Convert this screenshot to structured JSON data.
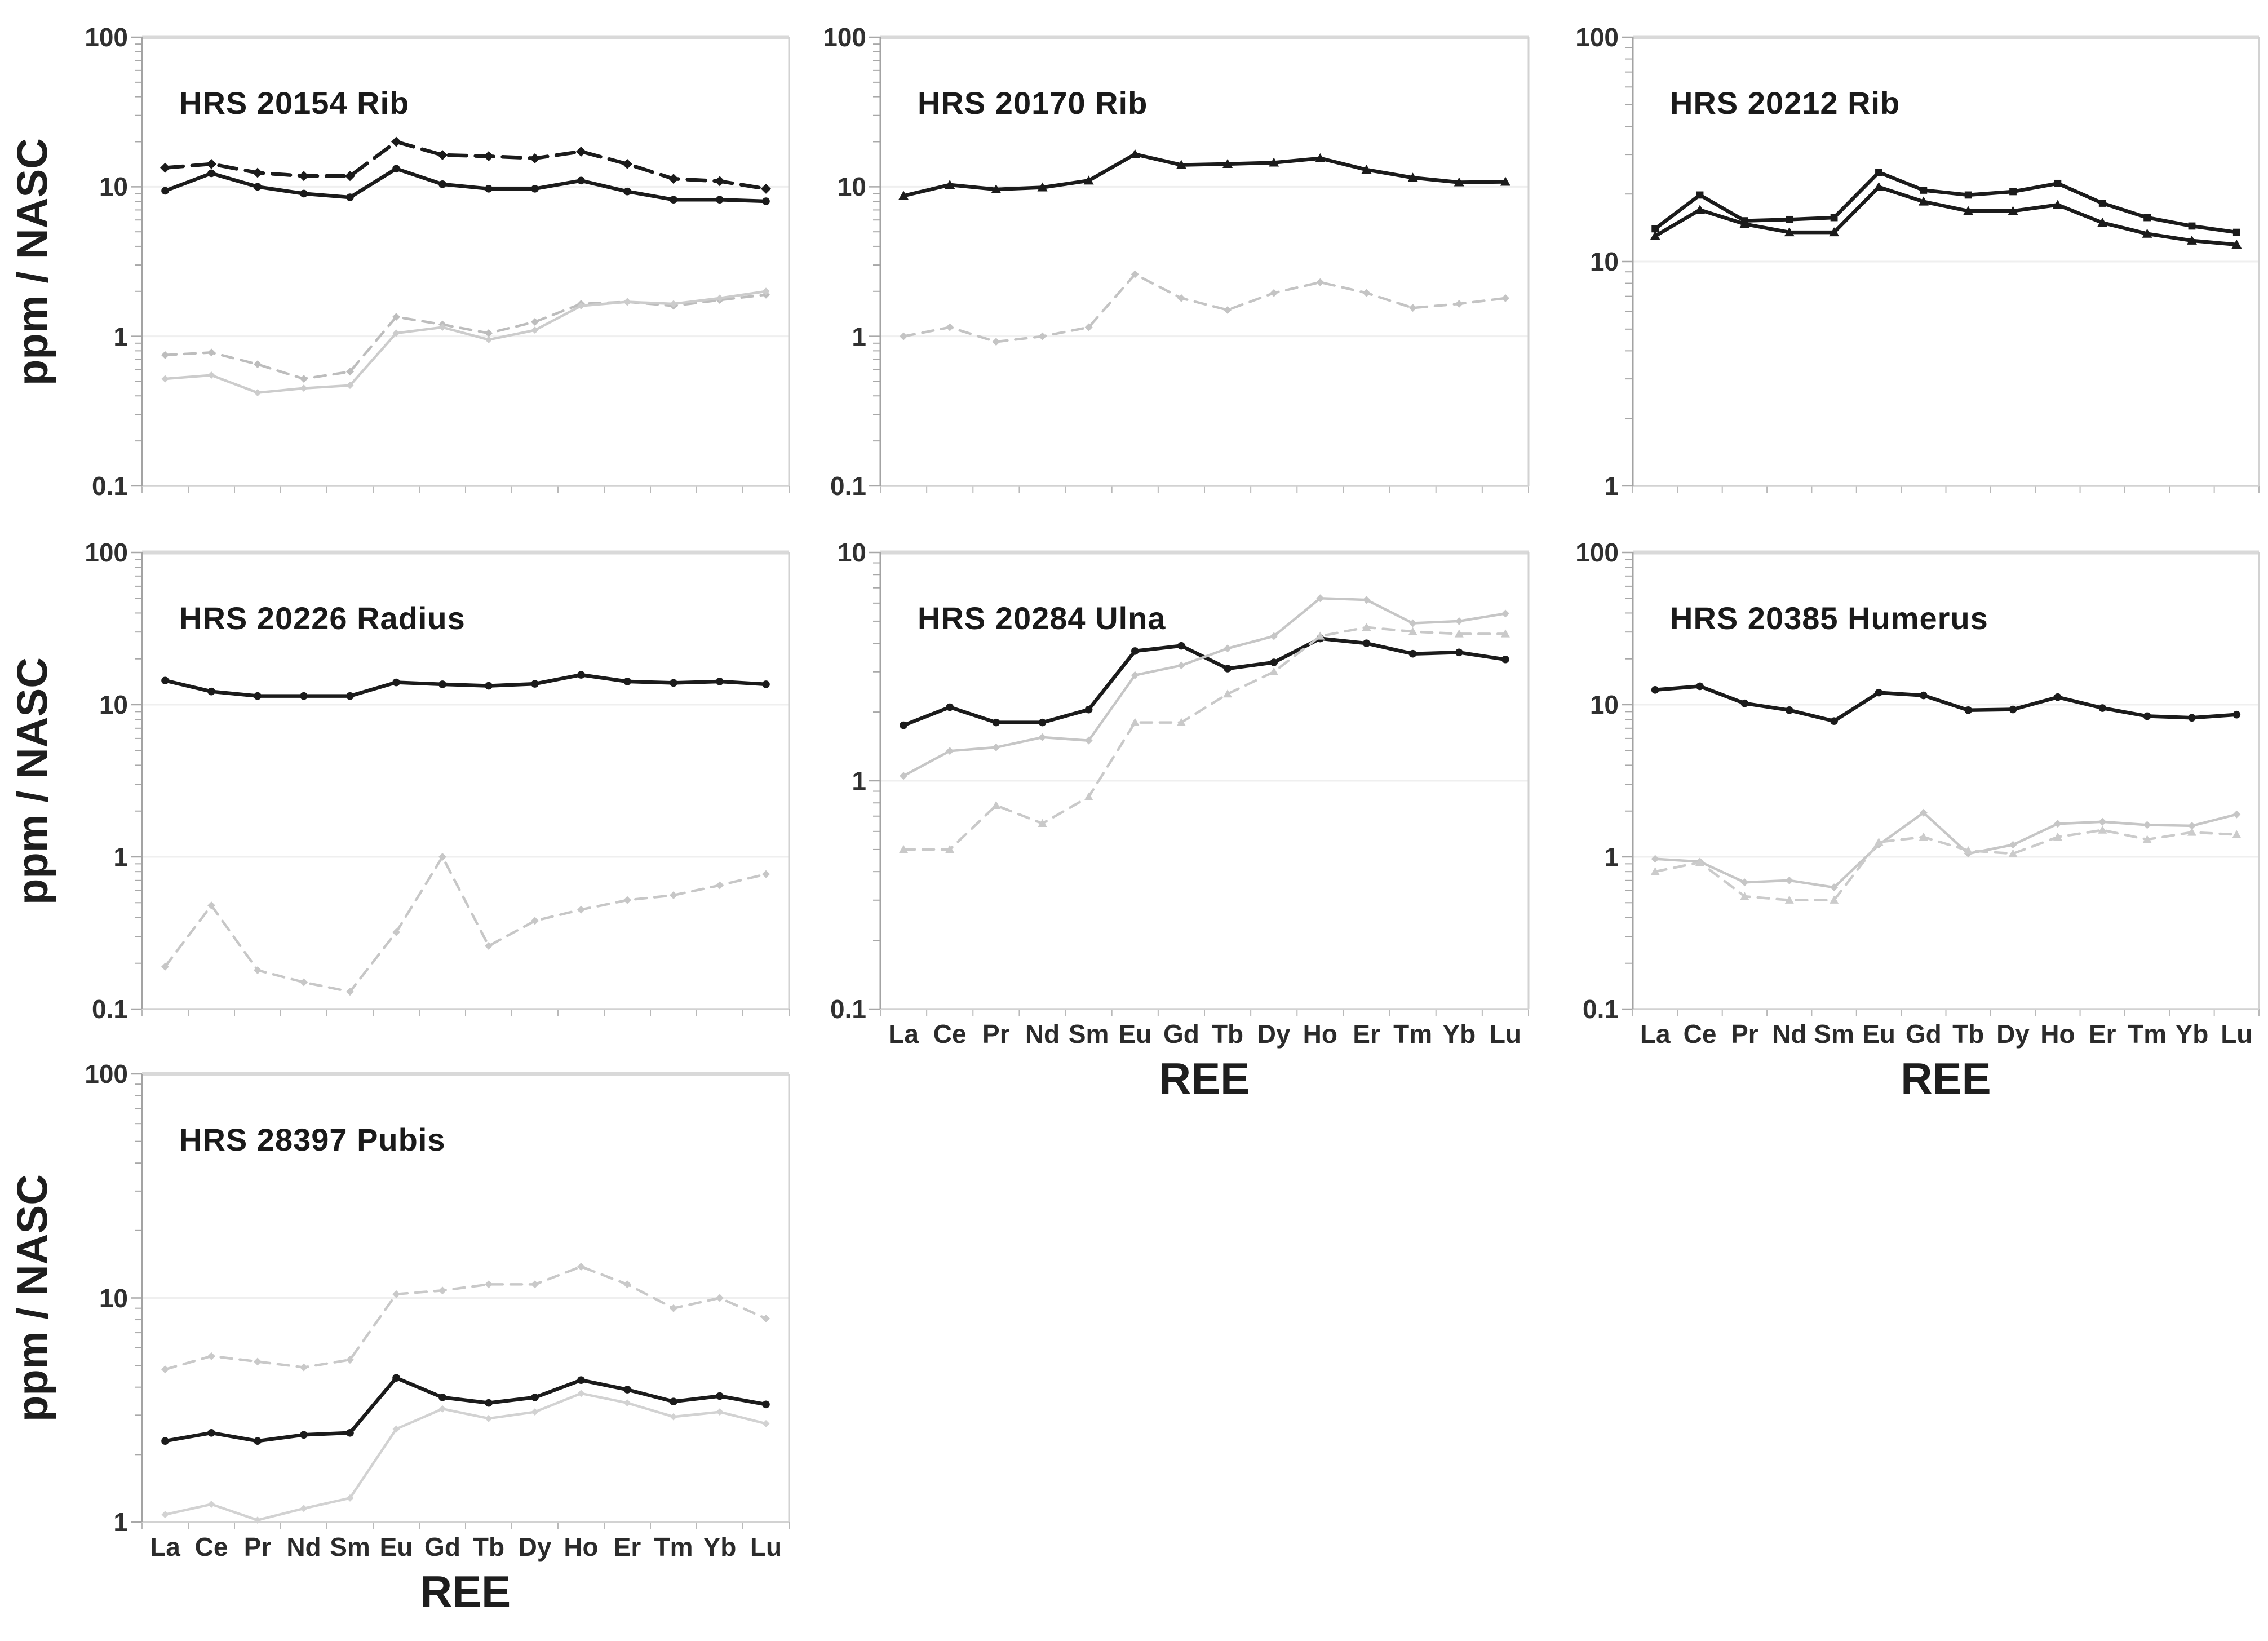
{
  "figure": {
    "y_axis_title": "ppm / NASC",
    "x_axis_title": "REE",
    "background_color": "#ffffff",
    "elements": [
      "La",
      "Ce",
      "Pr",
      "Nd",
      "Sm",
      "Eu",
      "Gd",
      "Tb",
      "Dy",
      "Ho",
      "Er",
      "Tm",
      "Yb",
      "Lu"
    ],
    "colors": {
      "black_series": "#1b1b1b",
      "gray_dashed_series": "#bfbfbf",
      "gray_solid_series": "#cbcbcb",
      "gridline": "#efefef",
      "axis_line": "#a3a3a3",
      "frame_line": "#d2d2d2",
      "tick_mark": "#a8a8a8"
    }
  },
  "chart_data": [
    {
      "type": "line",
      "title": "HRS 20154 Rib",
      "grid": {
        "row": 0,
        "col": 0
      },
      "ylog": true,
      "ylim": [
        0.1,
        100
      ],
      "ytick_labels": [
        "100",
        "10",
        "1",
        "0.1"
      ],
      "show_x_tick_labels": false,
      "show_x_axis_title": false,
      "show_y_axis_title": true,
      "series": [
        {
          "id": "black-dashed",
          "color": "#1b1b1b",
          "dash": "32 16",
          "width": 6.5,
          "marker": "diamond",
          "marker_size": 9,
          "values": [
            13.4,
            14.2,
            12.4,
            11.8,
            11.8,
            20.0,
            16.3,
            16.0,
            15.5,
            17.2,
            14.2,
            11.3,
            10.9,
            9.7
          ]
        },
        {
          "id": "black-solid",
          "color": "#1b1b1b",
          "dash": "",
          "width": 6.5,
          "marker": "circle",
          "marker_size": 8,
          "values": [
            9.4,
            12.3,
            10.0,
            9.0,
            8.5,
            13.2,
            10.4,
            9.7,
            9.7,
            11.0,
            9.3,
            8.2,
            8.2,
            8.0
          ]
        },
        {
          "id": "gray-dashed",
          "color": "#bdbdbd",
          "dash": "20 14",
          "width": 4.5,
          "marker": "diamond",
          "marker_size": 7,
          "values": [
            0.75,
            0.78,
            0.65,
            0.52,
            0.58,
            1.35,
            1.2,
            1.05,
            1.25,
            1.65,
            1.7,
            1.6,
            1.75,
            1.9
          ]
        },
        {
          "id": "gray-solid",
          "color": "#cccccc",
          "dash": "",
          "width": 4.5,
          "marker": "diamond",
          "marker_size": 6.5,
          "values": [
            0.52,
            0.55,
            0.42,
            0.45,
            0.47,
            1.05,
            1.15,
            0.95,
            1.1,
            1.6,
            1.7,
            1.65,
            1.8,
            2.0
          ]
        }
      ]
    },
    {
      "type": "line",
      "title": "HRS 20170 Rib",
      "grid": {
        "row": 0,
        "col": 1
      },
      "ylog": true,
      "ylim": [
        0.1,
        100
      ],
      "ytick_labels": [
        "100",
        "10",
        "1",
        "0.1"
      ],
      "show_x_tick_labels": false,
      "show_x_axis_title": false,
      "show_y_axis_title": false,
      "series": [
        {
          "id": "black-solid",
          "color": "#1b1b1b",
          "dash": "",
          "width": 6.5,
          "marker": "triangle",
          "marker_size": 9,
          "values": [
            8.7,
            10.3,
            9.6,
            9.9,
            11.0,
            16.5,
            14.0,
            14.2,
            14.5,
            15.5,
            13.0,
            11.5,
            10.7,
            10.8
          ]
        },
        {
          "id": "gray-dashed",
          "color": "#c4c4c4",
          "dash": "20 14",
          "width": 4.5,
          "marker": "diamond",
          "marker_size": 7,
          "values": [
            1.0,
            1.15,
            0.92,
            1.0,
            1.15,
            2.6,
            1.8,
            1.5,
            1.95,
            2.3,
            1.95,
            1.55,
            1.65,
            1.8
          ]
        }
      ]
    },
    {
      "type": "line",
      "title": "HRS 20212 Rib",
      "grid": {
        "row": 0,
        "col": 2
      },
      "ylog": true,
      "ylim": [
        1,
        100
      ],
      "ytick_labels": [
        "100",
        "10",
        "1"
      ],
      "show_x_tick_labels": false,
      "show_x_axis_title": false,
      "show_y_axis_title": false,
      "series": [
        {
          "id": "black-upper",
          "color": "#1b1b1b",
          "dash": "",
          "width": 6.5,
          "marker": "square",
          "marker_size": 8,
          "values": [
            14.0,
            19.8,
            15.2,
            15.4,
            15.7,
            25.0,
            20.8,
            19.8,
            20.5,
            22.3,
            18.2,
            15.7,
            14.4,
            13.5
          ]
        },
        {
          "id": "black-lower",
          "color": "#1b1b1b",
          "dash": "",
          "width": 6.5,
          "marker": "triangle",
          "marker_size": 9,
          "values": [
            13.0,
            17.0,
            14.7,
            13.5,
            13.5,
            21.5,
            18.5,
            16.8,
            16.8,
            17.9,
            14.9,
            13.3,
            12.4,
            11.9
          ]
        }
      ]
    },
    {
      "type": "line",
      "title": "HRS 20226 Radius",
      "grid": {
        "row": 1,
        "col": 0
      },
      "ylog": true,
      "ylim": [
        0.1,
        100
      ],
      "ytick_labels": [
        "100",
        "10",
        "1",
        "0.1"
      ],
      "show_x_tick_labels": false,
      "show_x_axis_title": false,
      "show_y_axis_title": true,
      "series": [
        {
          "id": "black-solid",
          "color": "#1b1b1b",
          "dash": "",
          "width": 6.5,
          "marker": "circle",
          "marker_size": 8,
          "values": [
            14.4,
            12.2,
            11.4,
            11.4,
            11.4,
            14.0,
            13.6,
            13.3,
            13.7,
            15.7,
            14.2,
            13.9,
            14.2,
            13.6
          ]
        },
        {
          "id": "gray-dashed",
          "color": "#c7c7c7",
          "dash": "20 14",
          "width": 4.5,
          "marker": "diamond",
          "marker_size": 7,
          "values": [
            0.19,
            0.48,
            0.18,
            0.15,
            0.13,
            0.32,
            1.0,
            0.26,
            0.38,
            0.45,
            0.52,
            0.56,
            0.65,
            0.77
          ]
        }
      ]
    },
    {
      "type": "line",
      "title": "HRS 20284 Ulna",
      "grid": {
        "row": 1,
        "col": 1
      },
      "ylog": true,
      "ylim": [
        0.1,
        10
      ],
      "ytick_labels": [
        "10",
        "1",
        "0.1"
      ],
      "show_x_tick_labels": true,
      "show_x_axis_title": true,
      "show_y_axis_title": false,
      "series": [
        {
          "id": "black-solid",
          "color": "#1b1b1b",
          "dash": "",
          "width": 6.5,
          "marker": "circle",
          "marker_size": 8,
          "values": [
            1.75,
            2.1,
            1.8,
            1.8,
            2.05,
            3.7,
            3.9,
            3.1,
            3.3,
            4.2,
            4.0,
            3.6,
            3.65,
            3.4
          ]
        },
        {
          "id": "gray-solid",
          "color": "#c6c6c6",
          "dash": "",
          "width": 4.5,
          "marker": "diamond",
          "marker_size": 7,
          "values": [
            1.05,
            1.35,
            1.4,
            1.55,
            1.5,
            2.9,
            3.2,
            3.8,
            4.3,
            6.3,
            6.2,
            4.9,
            5.0,
            5.4
          ]
        },
        {
          "id": "gray-dashed",
          "color": "#c9c9c9",
          "dash": "20 14",
          "width": 4.5,
          "marker": "triangle",
          "marker_size": 8,
          "values": [
            0.5,
            0.5,
            0.78,
            0.65,
            0.85,
            1.8,
            1.8,
            2.4,
            3.0,
            4.3,
            4.7,
            4.5,
            4.4,
            4.4
          ]
        }
      ]
    },
    {
      "type": "line",
      "title": "HRS 20385 Humerus",
      "grid": {
        "row": 1,
        "col": 2
      },
      "ylog": true,
      "ylim": [
        0.1,
        100
      ],
      "ytick_labels": [
        "100",
        "10",
        "1",
        "0.1"
      ],
      "show_x_tick_labels": true,
      "show_x_axis_title": true,
      "show_y_axis_title": false,
      "series": [
        {
          "id": "black-solid",
          "color": "#1b1b1b",
          "dash": "",
          "width": 6.5,
          "marker": "circle",
          "marker_size": 8,
          "values": [
            12.5,
            13.2,
            10.2,
            9.2,
            7.8,
            12.0,
            11.5,
            9.2,
            9.3,
            11.2,
            9.5,
            8.4,
            8.2,
            8.6
          ]
        },
        {
          "id": "gray-solid",
          "color": "#c6c6c6",
          "dash": "",
          "width": 4.5,
          "marker": "diamond",
          "marker_size": 7,
          "values": [
            0.97,
            0.93,
            0.68,
            0.7,
            0.63,
            1.2,
            1.95,
            1.05,
            1.2,
            1.65,
            1.7,
            1.62,
            1.6,
            1.9
          ]
        },
        {
          "id": "gray-dashed",
          "color": "#cbcbcb",
          "dash": "20 14",
          "width": 4.5,
          "marker": "triangle",
          "marker_size": 8,
          "values": [
            0.8,
            0.92,
            0.55,
            0.52,
            0.52,
            1.25,
            1.35,
            1.1,
            1.05,
            1.35,
            1.5,
            1.3,
            1.45,
            1.4
          ]
        }
      ]
    },
    {
      "type": "line",
      "title": "HRS 28397 Pubis",
      "grid": {
        "row": 2,
        "col": 0
      },
      "ylog": true,
      "ylim": [
        1,
        100
      ],
      "ytick_labels": [
        "100",
        "10",
        "1"
      ],
      "show_x_tick_labels": true,
      "show_x_axis_title": true,
      "show_y_axis_title": true,
      "series": [
        {
          "id": "gray-dashed",
          "color": "#c9c9c9",
          "dash": "20 14",
          "width": 4.5,
          "marker": "diamond",
          "marker_size": 7,
          "values": [
            4.8,
            5.5,
            5.2,
            4.9,
            5.3,
            10.4,
            10.8,
            11.5,
            11.5,
            13.8,
            11.5,
            9.0,
            10.0,
            8.1
          ]
        },
        {
          "id": "black-solid",
          "color": "#1b1b1b",
          "dash": "",
          "width": 6.5,
          "marker": "circle",
          "marker_size": 8,
          "values": [
            2.3,
            2.5,
            2.3,
            2.45,
            2.5,
            4.4,
            3.6,
            3.4,
            3.6,
            4.3,
            3.9,
            3.45,
            3.65,
            3.35
          ]
        },
        {
          "id": "gray-solid",
          "color": "#d2d2d2",
          "dash": "",
          "width": 4.5,
          "marker": "diamond",
          "marker_size": 6.5,
          "values": [
            1.08,
            1.2,
            1.02,
            1.15,
            1.28,
            2.6,
            3.2,
            2.9,
            3.1,
            3.75,
            3.4,
            2.95,
            3.1,
            2.75
          ]
        }
      ]
    }
  ]
}
